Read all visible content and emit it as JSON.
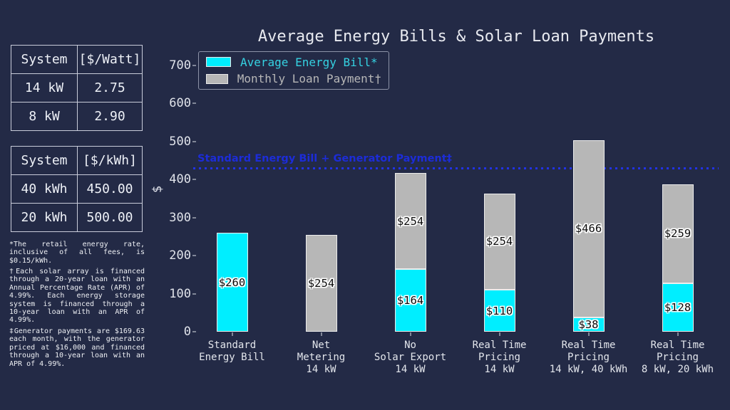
{
  "tables": [
    {
      "headers": [
        "System",
        "[$/Watt]"
      ],
      "rows": [
        [
          "14 kW",
          "2.75"
        ],
        [
          "8 kW",
          "2.90"
        ]
      ]
    },
    {
      "headers": [
        "System",
        "[$/kWh]"
      ],
      "rows": [
        [
          "40 kWh",
          "450.00"
        ],
        [
          "20 kWh",
          "500.00"
        ]
      ]
    }
  ],
  "footnotes": [
    "*The retail energy rate, inclusive of all fees, is $0.15/kWh.",
    "†Each solar array is financed through a 20-year loan with an Annual Percentage Rate (APR) of 4.99%. Each energy storage system is financed through a 10-year loan with an APR of 4.99%.",
    "‡Generator payments are $169.63 each month, with the generator priced at $16,000 and financed through a 10-year loan with an APR of 4.99%."
  ],
  "chart_data": {
    "type": "bar",
    "stacked": true,
    "title": "Average Energy Bills & Solar Loan Payments",
    "xlabel": "",
    "ylabel": "$",
    "ylim": [
      0,
      700
    ],
    "yticks": [
      0,
      100,
      200,
      300,
      400,
      500,
      600,
      700
    ],
    "grid": false,
    "legend_position": "upper left",
    "background_color": "#232a46",
    "categories": [
      [
        "Standard",
        "Energy Bill"
      ],
      [
        "Net",
        "Metering",
        "14 kW"
      ],
      [
        "No",
        "Solar Export",
        "14 kW"
      ],
      [
        "Real Time",
        "Pricing",
        "14 kW"
      ],
      [
        "Real Time",
        "Pricing",
        "14 kW, 40 kWh"
      ],
      [
        "Real Time",
        "Pricing",
        "8 kW, 20 kWh"
      ]
    ],
    "series": [
      {
        "name": "Average Energy Bill*",
        "color": "#00eeff",
        "text_color": "#35d2e2",
        "values": [
          260,
          0,
          164,
          110,
          38,
          128
        ],
        "bar_labels": [
          "$260",
          "",
          "$164",
          "$110",
          "$38",
          "$128"
        ]
      },
      {
        "name": "Monthly Loan Payment†",
        "color": "#b7b7b7",
        "text_color": "#b7b7b7",
        "values": [
          0,
          254,
          254,
          254,
          466,
          259
        ],
        "bar_labels": [
          "",
          "$254",
          "$254",
          "$254",
          "$466",
          "$259"
        ]
      }
    ],
    "reference_line": {
      "value": 429.63,
      "label": "Standard Energy Bill + Generator Payment‡",
      "color": "#1c2cd8",
      "style": "dotted"
    }
  }
}
